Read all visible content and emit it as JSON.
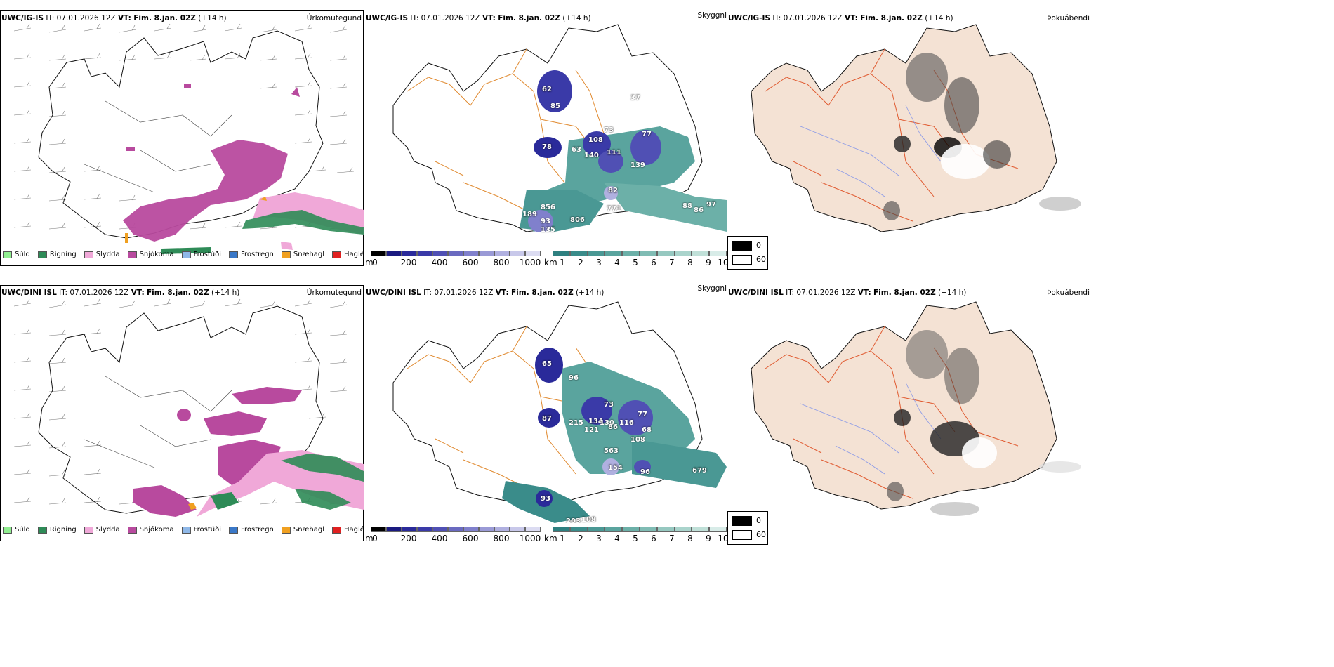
{
  "rows": [
    {
      "model": "UWC/IG-IS",
      "it_label": "IT:",
      "it_value": "07.01.2026 12Z",
      "vt_label": "VT:",
      "vt_value": "Fim. 8.jan. 02Z",
      "lead": "(+14 h)"
    },
    {
      "model": "UWC/DINI ISL",
      "it_label": "IT:",
      "it_value": "07.01.2026 12Z",
      "vt_label": "VT:",
      "vt_value": "Fim. 8.jan. 02Z",
      "lead": "(+14 h)"
    }
  ],
  "panel_titles": {
    "precip_type": "Úrkomutegund",
    "visibility": "Skyggni",
    "fog": "Þokuábendi"
  },
  "precip_legend": [
    {
      "label": "Súld",
      "color": "#90ee90"
    },
    {
      "label": "Rigning",
      "color": "#2e8b57"
    },
    {
      "label": "Slydda",
      "color": "#f0a8d8"
    },
    {
      "label": "Snjókoma",
      "color": "#b84a9e"
    },
    {
      "label": "Frostúði",
      "color": "#8fb8e8"
    },
    {
      "label": "Frostregn",
      "color": "#3a78c8"
    },
    {
      "label": "Snæhagl",
      "color": "#f0a020"
    },
    {
      "label": "Haglél",
      "color": "#e02020"
    }
  ],
  "cloudbase_bar": {
    "unit": "m",
    "ticks": [
      "0",
      "200",
      "400",
      "600",
      "800",
      "1000"
    ],
    "colors": [
      "#000000",
      "#1a1a80",
      "#2a2a9a",
      "#3a3aa8",
      "#5050b4",
      "#6a6ac0",
      "#8080cc",
      "#9a9ad6",
      "#b0b0e0",
      "#c8c8ea",
      "#dcdcf2"
    ]
  },
  "vis_bar": {
    "unit": "km",
    "ticks": [
      "1",
      "2",
      "3",
      "4",
      "5",
      "6",
      "7",
      "8",
      "9",
      "10"
    ],
    "colors": [
      "#2e8080",
      "#3a8c8a",
      "#4a9894",
      "#5aa49e",
      "#6cb0a8",
      "#80bcb4",
      "#96c8c0",
      "#aad4cc",
      "#c0e0d8",
      "#d8ece8"
    ]
  },
  "fog_legend": [
    {
      "value": "0",
      "color": "#000000"
    },
    {
      "value": "60",
      "color": "#ffffff"
    }
  ],
  "vis_labels_top": [
    "62",
    "85",
    "78",
    "108",
    "140",
    "111",
    "139",
    "77",
    "82",
    "189",
    "856",
    "93",
    "135",
    "806",
    "771",
    "88",
    "86",
    "97",
    "63",
    "73",
    "37"
  ],
  "vis_labels_bottom": [
    "65",
    "96",
    "87",
    "215",
    "134",
    "130",
    "121",
    "86",
    "116",
    "68",
    "108",
    "563",
    "154",
    "96",
    "679",
    "93",
    "203",
    "108",
    "73",
    "77"
  ]
}
